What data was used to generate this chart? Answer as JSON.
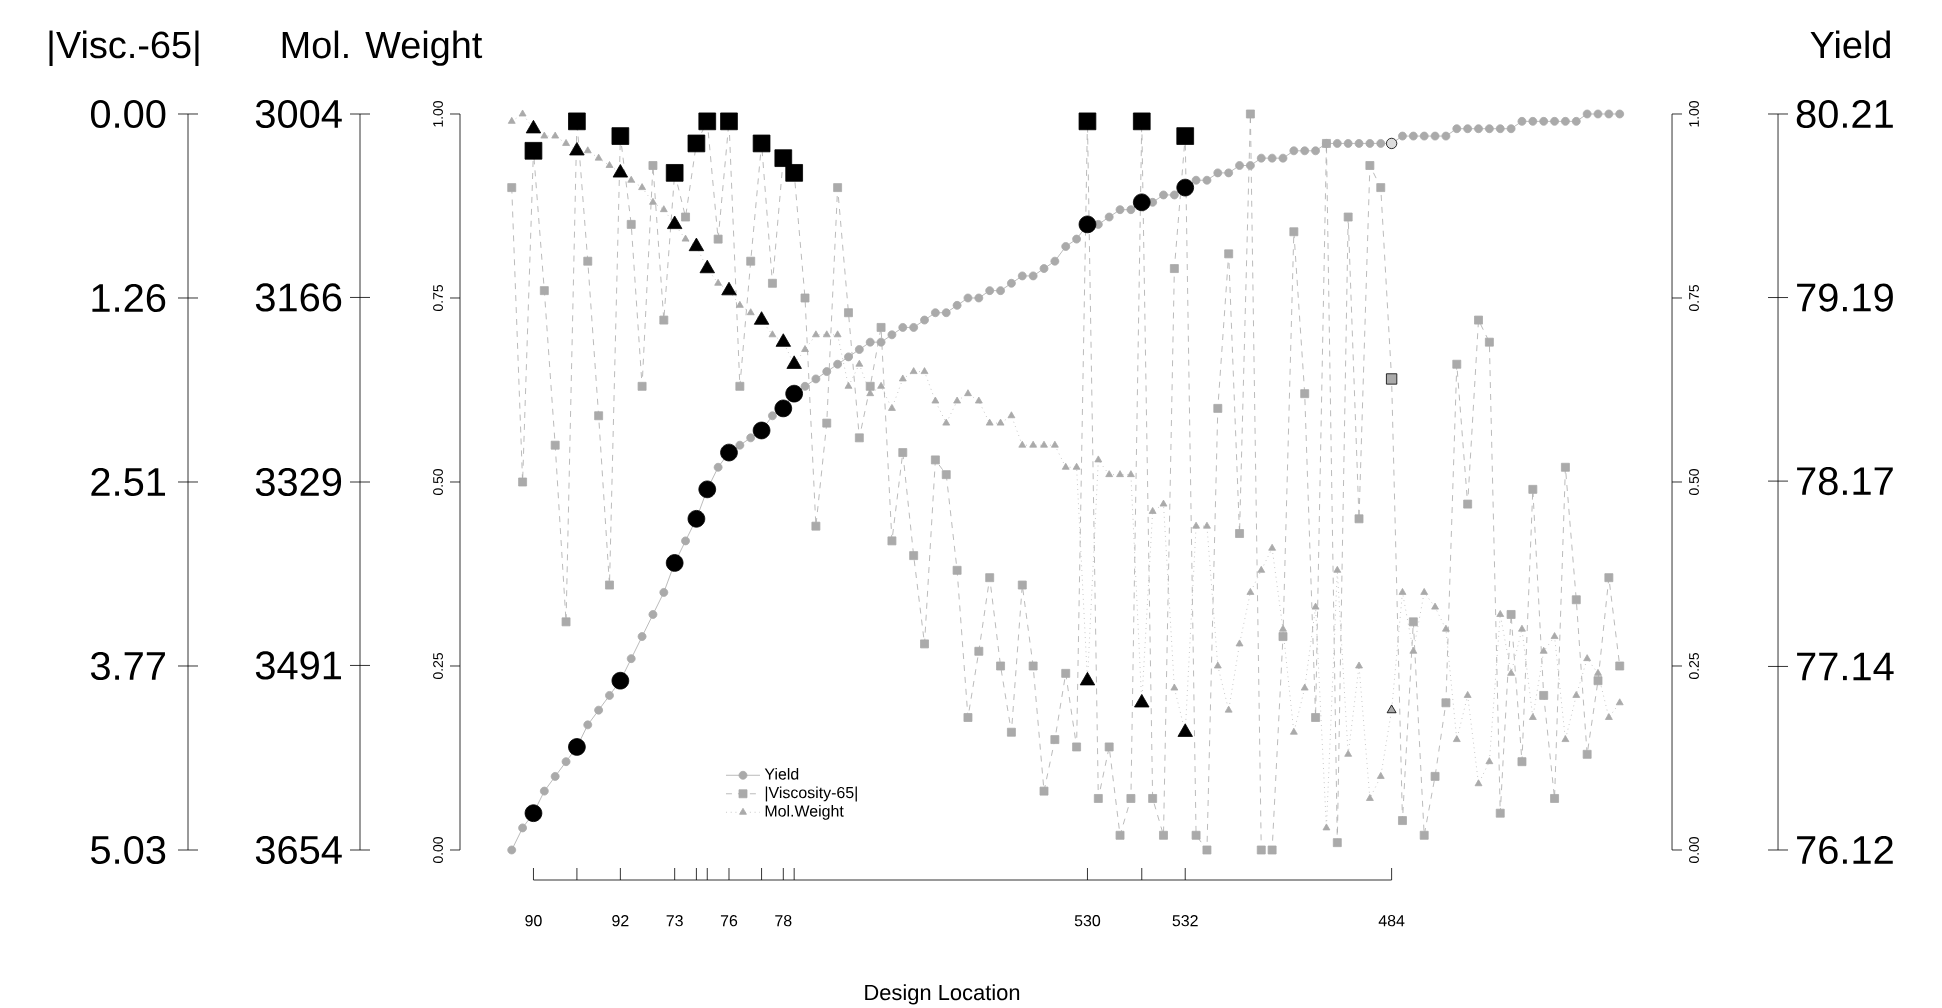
{
  "chart_data": {
    "type": "line",
    "xlabel": "Design Location",
    "categories": [
      null,
      null,
      "90",
      null,
      null,
      null,
      null,
      null,
      null,
      null,
      "92",
      null,
      null,
      null,
      null,
      "73",
      null,
      null,
      null,
      null,
      "76",
      null,
      null,
      null,
      null,
      "78",
      null,
      null,
      null,
      null,
      null,
      null,
      null,
      null,
      null,
      null,
      null,
      null,
      null,
      null,
      null,
      null,
      null,
      null,
      null,
      null,
      null,
      null,
      null,
      null,
      null,
      null,
      null,
      "530",
      null,
      null,
      null,
      null,
      null,
      null,
      null,
      null,
      "532",
      null,
      null,
      null,
      null,
      null,
      null,
      null,
      null,
      null,
      null,
      null,
      null,
      null,
      null,
      null,
      null,
      null,
      null,
      "484",
      null,
      null,
      null,
      null,
      null,
      null,
      null,
      null,
      null,
      null,
      null,
      null,
      null,
      null,
      null,
      null,
      null,
      null,
      null,
      null,
      null
    ],
    "ylim": [
      0,
      1
    ],
    "yticks": [
      {
        "value": 0,
        "label": "0.00"
      },
      {
        "value": 0.25,
        "label": "0.25"
      },
      {
        "value": 0.5,
        "label": "0.50"
      },
      {
        "value": 0.75,
        "label": "0.75"
      },
      {
        "value": 1,
        "label": "1.00"
      }
    ],
    "y2label": "Yield",
    "y2lim": [
      76.12,
      80.21
    ],
    "y2ticks": [
      76.12,
      77.14,
      78.17,
      79.19,
      80.21
    ],
    "y3label": "Mol. Weight",
    "y3lim": [
      3654,
      3004
    ],
    "y3ticks": [
      3654,
      3491,
      3329,
      3166,
      3004
    ],
    "annotations": [
      "|Visc.-65|",
      "0.00",
      "1.26",
      "2.51",
      "3.77",
      "5.03"
    ],
    "legend": "bottom",
    "series": [
      {
        "name": "Yield",
        "marker": "circle",
        "line_style": "solid",
        "color": "#aaaaaa",
        "values": [
          0.0,
          0.03,
          0.05,
          0.08,
          0.1,
          0.12,
          0.14,
          0.17,
          0.19,
          0.21,
          0.23,
          0.26,
          0.29,
          0.32,
          0.35,
          0.39,
          0.42,
          0.45,
          0.49,
          0.52,
          0.54,
          0.55,
          0.56,
          0.57,
          0.59,
          0.6,
          0.62,
          0.63,
          0.64,
          0.65,
          0.66,
          0.67,
          0.68,
          0.69,
          0.69,
          0.7,
          0.71,
          0.71,
          0.72,
          0.73,
          0.73,
          0.74,
          0.75,
          0.75,
          0.76,
          0.76,
          0.77,
          0.78,
          0.78,
          0.79,
          0.8,
          0.82,
          0.83,
          0.85,
          0.85,
          0.86,
          0.87,
          0.87,
          0.88,
          0.88,
          0.89,
          0.89,
          0.9,
          0.91,
          0.91,
          0.92,
          0.92,
          0.93,
          0.93,
          0.94,
          0.94,
          0.94,
          0.95,
          0.95,
          0.95,
          0.96,
          0.96,
          0.96,
          0.96,
          0.96,
          0.96,
          0.96,
          0.97,
          0.97,
          0.97,
          0.97,
          0.97,
          0.98,
          0.98,
          0.98,
          0.98,
          0.98,
          0.98,
          0.99,
          0.99,
          0.99,
          0.99,
          0.99,
          0.99,
          1.0,
          1.0,
          1.0,
          1.0
        ]
      },
      {
        "name": "|Viscosity-65|",
        "marker": "square",
        "line_style": "dashed",
        "color": "#aaaaaa",
        "values": [
          0.9,
          0.5,
          0.95,
          0.76,
          0.55,
          0.31,
          0.99,
          0.8,
          0.59,
          0.36,
          0.97,
          0.85,
          0.63,
          0.93,
          0.72,
          0.92,
          0.86,
          0.96,
          0.99,
          0.83,
          0.99,
          0.63,
          0.8,
          0.96,
          0.77,
          0.94,
          0.92,
          0.75,
          0.44,
          0.58,
          0.9,
          0.73,
          0.56,
          0.63,
          0.71,
          0.42,
          0.54,
          0.4,
          0.28,
          0.53,
          0.51,
          0.38,
          0.18,
          0.27,
          0.37,
          0.25,
          0.16,
          0.36,
          0.25,
          0.08,
          0.15,
          0.24,
          0.14,
          0.99,
          0.07,
          0.14,
          0.02,
          0.07,
          0.99,
          0.07,
          0.02,
          0.79,
          0.97,
          0.02,
          0.0,
          0.6,
          0.81,
          0.43,
          1.0,
          0.0,
          0.0,
          0.29,
          0.84,
          0.62,
          0.18,
          0.96,
          0.01,
          0.86,
          0.45,
          0.93,
          0.9,
          0.64,
          0.04,
          0.31,
          0.02,
          0.1,
          0.2,
          0.66,
          0.47,
          0.72,
          0.69,
          0.05,
          0.32,
          0.12,
          0.49,
          0.21,
          0.07,
          0.52,
          0.34,
          0.13,
          0.23,
          0.37,
          0.25
        ]
      },
      {
        "name": "Mol.Weight",
        "marker": "triangle",
        "line_style": "dotted",
        "color": "#aaaaaa",
        "values": [
          0.99,
          1.0,
          0.98,
          0.97,
          0.97,
          0.96,
          0.95,
          0.95,
          0.94,
          0.93,
          0.92,
          0.91,
          0.9,
          0.88,
          0.87,
          0.85,
          0.83,
          0.82,
          0.79,
          0.77,
          0.76,
          0.74,
          0.73,
          0.72,
          0.7,
          0.69,
          0.66,
          0.68,
          0.7,
          0.7,
          0.7,
          0.63,
          0.66,
          0.62,
          0.63,
          0.6,
          0.64,
          0.65,
          0.65,
          0.61,
          0.58,
          0.61,
          0.62,
          0.61,
          0.58,
          0.58,
          0.59,
          0.55,
          0.55,
          0.55,
          0.55,
          0.52,
          0.52,
          0.23,
          0.53,
          0.51,
          0.51,
          0.51,
          0.2,
          0.46,
          0.47,
          0.22,
          0.16,
          0.44,
          0.44,
          0.25,
          0.19,
          0.28,
          0.35,
          0.38,
          0.41,
          0.3,
          0.16,
          0.22,
          0.33,
          0.03,
          0.38,
          0.13,
          0.25,
          0.07,
          0.1,
          0.19,
          0.35,
          0.27,
          0.35,
          0.33,
          0.3,
          0.15,
          0.21,
          0.09,
          0.12,
          0.32,
          0.24,
          0.3,
          0.18,
          0.27,
          0.29,
          0.15,
          0.21,
          0.26,
          0.24,
          0.18,
          0.2
        ]
      },
      {
        "type": "scatter",
        "marker": "circle",
        "color": "#000000",
        "values": [
          null,
          null,
          0.05,
          null,
          null,
          null,
          0.14,
          null,
          null,
          null,
          0.23,
          null,
          null,
          null,
          null,
          0.39,
          null,
          0.45,
          0.49,
          null,
          0.54,
          null,
          null,
          0.57,
          null,
          0.6,
          0.62,
          null,
          null,
          null,
          null,
          null,
          null,
          null,
          null,
          null,
          null,
          null,
          null,
          null,
          null,
          null,
          null,
          null,
          null,
          null,
          null,
          null,
          null,
          null,
          null,
          null,
          null,
          0.85,
          null,
          null,
          null,
          null,
          0.88,
          null,
          null,
          null,
          0.9,
          null,
          null,
          null,
          null,
          null,
          null,
          null,
          null,
          null,
          null,
          null,
          null,
          null,
          null,
          null,
          null,
          null,
          null,
          null,
          null,
          null,
          null,
          null,
          null,
          null,
          null,
          null,
          null,
          null,
          null,
          null,
          null,
          null,
          null,
          null,
          null,
          null,
          null,
          null,
          null
        ]
      },
      {
        "type": "scatter",
        "marker": "square",
        "color": "#000000",
        "values": [
          null,
          null,
          0.95,
          null,
          null,
          null,
          0.99,
          null,
          null,
          null,
          0.97,
          null,
          null,
          null,
          null,
          0.92,
          null,
          0.96,
          0.99,
          null,
          0.99,
          null,
          null,
          0.96,
          null,
          0.94,
          0.92,
          null,
          null,
          null,
          null,
          null,
          null,
          null,
          null,
          null,
          null,
          null,
          null,
          null,
          null,
          null,
          null,
          null,
          null,
          null,
          null,
          null,
          null,
          null,
          null,
          null,
          null,
          0.99,
          null,
          null,
          null,
          null,
          0.99,
          null,
          null,
          null,
          0.97,
          null,
          null,
          null,
          null,
          null,
          null,
          null,
          null,
          null,
          null,
          null,
          null,
          null,
          null,
          null,
          null,
          null,
          null,
          null,
          null,
          null,
          null,
          null,
          null,
          null,
          null,
          null,
          null,
          null,
          null,
          null,
          null,
          null,
          null,
          null,
          null,
          null,
          null,
          null,
          null
        ]
      },
      {
        "type": "scatter",
        "marker": "triangle",
        "color": "#000000",
        "values": [
          null,
          null,
          0.98,
          null,
          null,
          null,
          0.95,
          null,
          null,
          null,
          0.92,
          null,
          null,
          null,
          null,
          0.85,
          null,
          0.82,
          0.79,
          null,
          0.76,
          null,
          null,
          0.72,
          null,
          0.69,
          0.66,
          null,
          null,
          null,
          null,
          null,
          null,
          null,
          null,
          null,
          null,
          null,
          null,
          null,
          null,
          null,
          null,
          null,
          null,
          null,
          null,
          null,
          null,
          null,
          null,
          null,
          null,
          0.23,
          null,
          null,
          null,
          null,
          0.2,
          null,
          null,
          null,
          0.16,
          null,
          null,
          null,
          null,
          null,
          null,
          null,
          null,
          null,
          null,
          null,
          null,
          null,
          null,
          null,
          null,
          null,
          null,
          null,
          null,
          null,
          null,
          null,
          null,
          null,
          null,
          null,
          null,
          null,
          null,
          null,
          null,
          null,
          null,
          null,
          null,
          null,
          null,
          null,
          null
        ]
      },
      {
        "type": "scatter",
        "marker": "circle",
        "color": "#dddddd",
        "values": [
          null,
          null,
          null,
          null,
          null,
          null,
          null,
          null,
          null,
          null,
          null,
          null,
          null,
          null,
          null,
          null,
          null,
          null,
          null,
          null,
          null,
          null,
          null,
          null,
          null,
          null,
          null,
          null,
          null,
          null,
          null,
          null,
          null,
          null,
          null,
          null,
          null,
          null,
          null,
          null,
          null,
          null,
          null,
          null,
          null,
          null,
          null,
          null,
          null,
          null,
          null,
          null,
          null,
          null,
          null,
          null,
          null,
          null,
          null,
          null,
          null,
          null,
          null,
          null,
          null,
          null,
          null,
          null,
          null,
          null,
          null,
          null,
          null,
          null,
          null,
          null,
          null,
          null,
          null,
          null,
          null,
          0.96,
          null,
          null,
          null,
          null,
          null,
          null,
          null,
          null,
          null,
          null,
          null,
          null,
          null,
          null,
          null,
          null,
          null,
          null,
          null,
          null,
          null
        ]
      },
      {
        "type": "scatter",
        "marker": "square",
        "color": "#aaaaaa",
        "values": [
          null,
          null,
          null,
          null,
          null,
          null,
          null,
          null,
          null,
          null,
          null,
          null,
          null,
          null,
          null,
          null,
          null,
          null,
          null,
          null,
          null,
          null,
          null,
          null,
          null,
          null,
          null,
          null,
          null,
          null,
          null,
          null,
          null,
          null,
          null,
          null,
          null,
          null,
          null,
          null,
          null,
          null,
          null,
          null,
          null,
          null,
          null,
          null,
          null,
          null,
          null,
          null,
          null,
          null,
          null,
          null,
          null,
          null,
          null,
          null,
          null,
          null,
          null,
          null,
          null,
          null,
          null,
          null,
          null,
          null,
          null,
          null,
          null,
          null,
          null,
          null,
          null,
          null,
          null,
          null,
          null,
          0.64,
          null,
          null,
          null,
          null,
          null,
          null,
          null,
          null,
          null,
          null,
          null,
          null,
          null,
          null,
          null,
          null,
          null,
          null,
          null,
          null,
          null
        ]
      },
      {
        "type": "scatter",
        "marker": "triangle",
        "color": "#aaaaaa",
        "values": [
          null,
          null,
          null,
          null,
          null,
          null,
          null,
          null,
          null,
          null,
          null,
          null,
          null,
          null,
          null,
          null,
          null,
          null,
          null,
          null,
          null,
          null,
          null,
          null,
          null,
          null,
          null,
          null,
          null,
          null,
          null,
          null,
          null,
          null,
          null,
          null,
          null,
          null,
          null,
          null,
          null,
          null,
          null,
          null,
          null,
          null,
          null,
          null,
          null,
          null,
          null,
          null,
          null,
          null,
          null,
          null,
          null,
          null,
          null,
          null,
          null,
          null,
          null,
          null,
          null,
          null,
          null,
          null,
          null,
          null,
          null,
          null,
          null,
          null,
          null,
          null,
          null,
          null,
          null,
          null,
          null,
          0.19,
          null,
          null,
          null,
          null,
          null,
          null,
          null,
          null,
          null,
          null,
          null,
          null,
          null,
          null,
          null,
          null,
          null,
          null,
          null,
          null,
          null
        ]
      }
    ]
  }
}
